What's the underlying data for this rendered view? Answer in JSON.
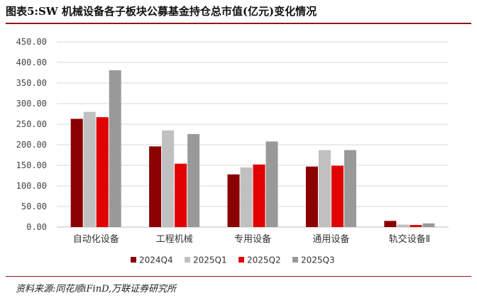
{
  "header": {
    "title": "图表5:SW 机械设备各子板块公募基金持仓总市值(亿元)变化情况"
  },
  "footer": {
    "source": "资料来源:同花顺iFinD,万联证券研究所"
  },
  "chart_data": {
    "type": "bar",
    "categories": [
      "自动化设备",
      "工程机械",
      "专用设备",
      "通用设备",
      "轨交设备Ⅱ"
    ],
    "series": [
      {
        "name": "2024Q4",
        "color": "#8b0000",
        "values": [
          263,
          196,
          128,
          147,
          15
        ]
      },
      {
        "name": "2025Q1",
        "color": "#c0c0c0",
        "values": [
          280,
          235,
          145,
          187,
          6
        ]
      },
      {
        "name": "2025Q2",
        "color": "#e00000",
        "values": [
          267,
          154,
          152,
          149,
          5
        ]
      },
      {
        "name": "2025Q3",
        "color": "#999999",
        "values": [
          381,
          226,
          208,
          187,
          9
        ]
      }
    ],
    "yticks": [
      "0.00",
      "50.00",
      "100.00",
      "150.00",
      "200.00",
      "250.00",
      "300.00",
      "350.00",
      "400.00",
      "450.00"
    ],
    "ylim": [
      0,
      450
    ],
    "grid": true,
    "legend": "bottom"
  }
}
